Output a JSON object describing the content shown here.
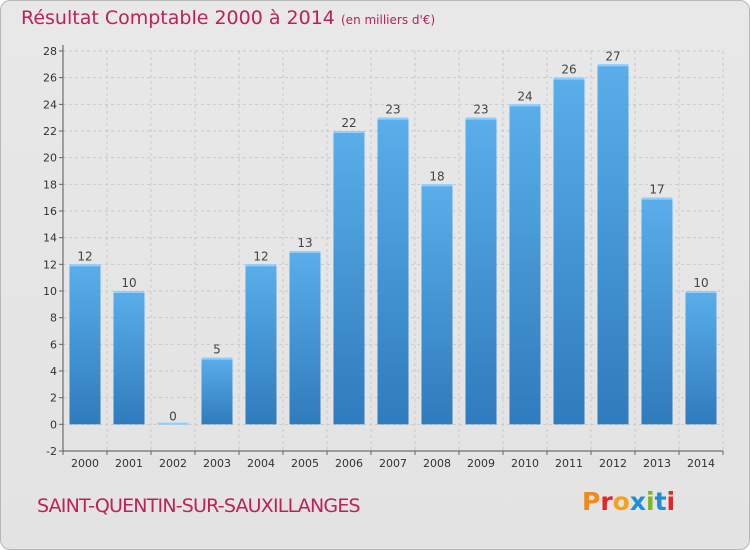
{
  "header": {
    "title": "Résultat Comptable 2000 à 2014",
    "subtitle": "(en milliers d'€)"
  },
  "footer": {
    "commune": "SAINT-QUENTIN-SUR-SAUXILLANGES",
    "logo_text": "Proxiti",
    "logo_colors": [
      "#f08a1c",
      "#e0262a",
      "#f6a21e",
      "#1f8ed6",
      "#7fb51f",
      "#1f8ed6",
      "#e0262a"
    ]
  },
  "chart_data": {
    "type": "bar",
    "categories": [
      "2000",
      "2001",
      "2002",
      "2003",
      "2004",
      "2005",
      "2006",
      "2007",
      "2008",
      "2009",
      "2010",
      "2011",
      "2012",
      "2013",
      "2014"
    ],
    "values": [
      12,
      10,
      0,
      5,
      12,
      13,
      22,
      23,
      18,
      23,
      24,
      26,
      27,
      17,
      10
    ],
    "data_labels": [
      "12",
      "10",
      "0",
      "5",
      "12",
      "13",
      "22",
      "23",
      "18",
      "23",
      "24",
      "26",
      "27",
      "17",
      "10"
    ],
    "ylim": [
      -2,
      28
    ],
    "yticks": [
      -2,
      0,
      2,
      4,
      6,
      8,
      10,
      12,
      14,
      16,
      18,
      20,
      22,
      24,
      26,
      28
    ],
    "grid": true,
    "bar_color": "#3d8fd3",
    "xlabel": "",
    "ylabel": ""
  }
}
